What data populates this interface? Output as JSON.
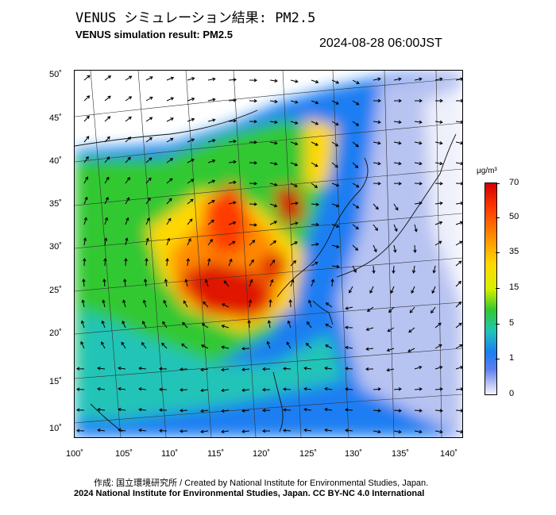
{
  "header": {
    "title_jp": "VENUS シミュレーション結果: PM2.5",
    "title_en": "VENUS simulation result: PM2.5",
    "timestamp": "2024-08-28 06:00JST"
  },
  "map": {
    "lat_labels": [
      "50˚",
      "45˚",
      "40˚",
      "35˚",
      "30˚",
      "25˚",
      "20˚",
      "15˚",
      "10˚"
    ],
    "lon_labels": [
      "100˚",
      "105˚",
      "110˚",
      "115˚",
      "120˚",
      "125˚",
      "130˚",
      "135˚",
      "140˚"
    ],
    "region": "East Asia",
    "pollutant": "PM2.5"
  },
  "colorbar": {
    "unit": "μg/m³",
    "labels": [
      "70",
      "50",
      "35",
      "15",
      "5",
      "1",
      "0"
    ],
    "colors": {
      "high": "#d40000",
      "orange": "#ff8a00",
      "yellow": "#ffd800",
      "green": "#32c830",
      "cyan": "#22c4b8",
      "blue": "#1a7ef2",
      "low": "#f3f4fb"
    }
  },
  "footer": {
    "credit_line1": "作成: 国立環境研究所 / Created by National Institute for Environmental Studies, Japan.",
    "credit_line2": "2024 National Institute for Environmental Studies, Japan. CC BY-NC 4.0 International"
  }
}
